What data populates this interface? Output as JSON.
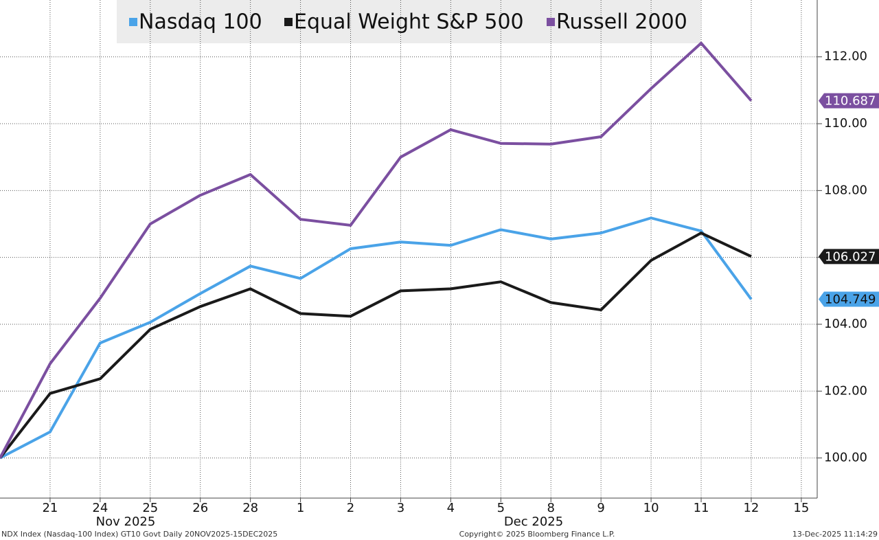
{
  "chart_data": {
    "type": "line",
    "categories": [
      null,
      "21",
      "24",
      "25",
      "26",
      "28",
      "1",
      "2",
      "3",
      "4",
      "5",
      "8",
      "9",
      "10",
      "11",
      "12",
      "15"
    ],
    "month_labels": [
      "Nov 2025",
      "Dec 2025"
    ],
    "series": [
      {
        "name": "Nasdaq 100",
        "color": "#4aa3e8",
        "values": [
          100,
          100.78,
          103.44,
          104.06,
          104.92,
          105.74,
          105.37,
          106.26,
          106.46,
          106.36,
          106.83,
          106.55,
          106.73,
          107.18,
          106.79,
          104.749,
          null
        ]
      },
      {
        "name": "Equal Weight S&P 500",
        "color": "#1a1a1a",
        "values": [
          100,
          101.93,
          102.37,
          103.85,
          104.53,
          105.06,
          104.32,
          104.24,
          105.0,
          105.06,
          105.27,
          104.65,
          104.43,
          105.91,
          106.73,
          106.027,
          null
        ]
      },
      {
        "name": "Russell 2000",
        "color": "#7b4fa0",
        "values": [
          100,
          102.82,
          104.78,
          107.0,
          107.86,
          108.48,
          107.14,
          106.96,
          109.0,
          109.82,
          109.41,
          109.39,
          109.61,
          111.05,
          112.41,
          110.687,
          null
        ]
      }
    ],
    "ylim": [
      98.8,
      113.7
    ],
    "yticks": [
      {
        "value": 100,
        "label": "100.00"
      },
      {
        "value": 102,
        "label": "102.00"
      },
      {
        "value": 104,
        "label": "104.00"
      },
      {
        "value": 106,
        "label": "106.00"
      },
      {
        "value": 108,
        "label": "108.00"
      },
      {
        "value": 110,
        "label": "110.00"
      },
      {
        "value": 112,
        "label": "112.00"
      }
    ],
    "grid": true,
    "footer": {
      "left": "NDX Index (Nasdaq-100 Index) GT10  Govt Daily 20NOV2025-15DEC2025",
      "center": "Copyright© 2025 Bloomberg Finance L.P.",
      "right": "13-Dec-2025 11:14:29"
    }
  }
}
